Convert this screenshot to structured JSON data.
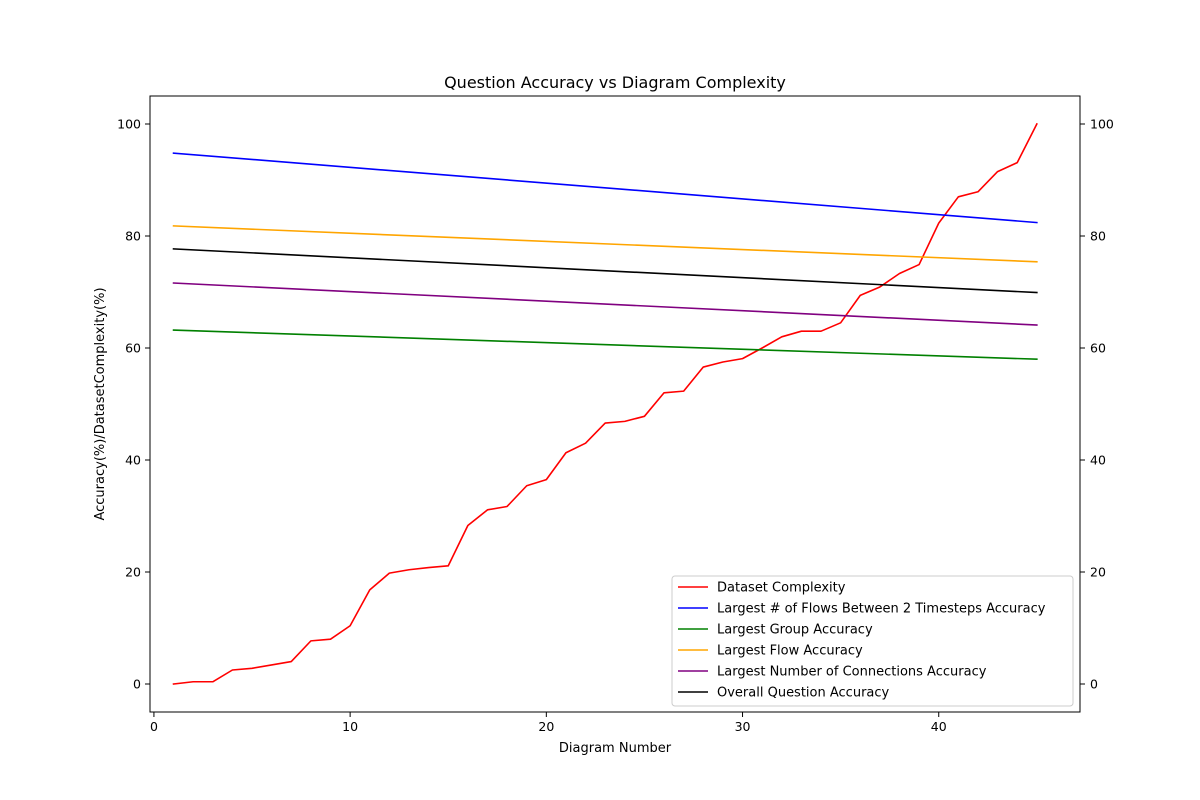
{
  "chart_data": {
    "type": "line",
    "title": "Question Accuracy vs Diagram Complexity",
    "xlabel": "Diagram Number",
    "ylabel": "Accuracy(%)/DatasetComplexity(%)",
    "xlim": [
      -0.2,
      47.2
    ],
    "ylim": [
      -5,
      105
    ],
    "x_ticks": [
      0,
      10,
      20,
      30,
      40
    ],
    "y_ticks": [
      0,
      20,
      40,
      60,
      80,
      100
    ],
    "secondary_y_ticks": [
      0,
      20,
      40,
      60,
      80,
      100
    ],
    "grid": false,
    "legend_position": "lower-right",
    "series": [
      {
        "name": "Dataset Complexity",
        "color": "#ff0000",
        "x": [
          1,
          2,
          3,
          4,
          5,
          6,
          7,
          8,
          9,
          10,
          11,
          12,
          13,
          14,
          15,
          16,
          17,
          18,
          19,
          20,
          21,
          22,
          23,
          24,
          25,
          26,
          27,
          28,
          29,
          30,
          31,
          32,
          33,
          34,
          35,
          36,
          37,
          38,
          39,
          40,
          41,
          42,
          43,
          44,
          45
        ],
        "values": [
          0.0,
          0.4,
          0.4,
          2.5,
          2.8,
          3.4,
          4.0,
          7.7,
          8.0,
          10.4,
          16.8,
          19.8,
          20.4,
          20.8,
          21.1,
          28.3,
          31.1,
          31.7,
          35.4,
          36.5,
          41.3,
          43.0,
          46.6,
          46.9,
          47.8,
          52.0,
          52.3,
          56.6,
          57.5,
          58.1,
          60.0,
          62.0,
          63.0,
          63.0,
          64.5,
          69.4,
          70.9,
          73.3,
          74.9,
          82.3,
          87.0,
          87.9,
          91.5,
          93.1,
          100.0
        ]
      },
      {
        "name": "Largest # of Flows Between 2 Timesteps Accuracy",
        "color": "#0000ff",
        "x": [
          1,
          45
        ],
        "values": [
          94.8,
          82.4
        ]
      },
      {
        "name": "Largest Group Accuracy",
        "color": "#008000",
        "x": [
          1,
          45
        ],
        "values": [
          63.2,
          58.0
        ]
      },
      {
        "name": "Largest Flow Accuracy",
        "color": "#ffa500",
        "x": [
          1,
          45
        ],
        "values": [
          81.8,
          75.4
        ]
      },
      {
        "name": "Largest Number of Connections Accuracy",
        "color": "#800080",
        "x": [
          1,
          45
        ],
        "values": [
          71.6,
          64.1
        ]
      },
      {
        "name": "Overall Question Accuracy",
        "color": "#000000",
        "x": [
          1,
          45
        ],
        "values": [
          77.7,
          69.9
        ]
      }
    ]
  }
}
